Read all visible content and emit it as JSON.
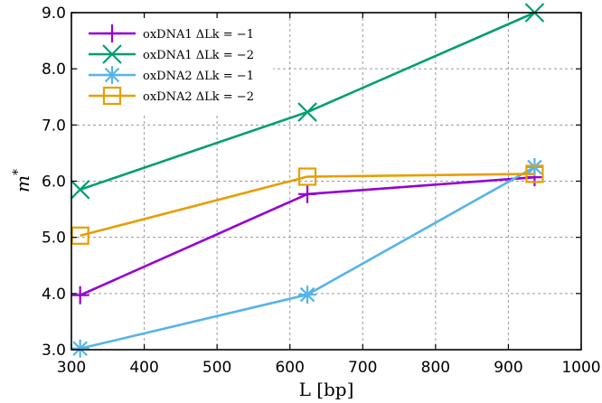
{
  "chart_data": {
    "type": "line",
    "xlabel": "L [bp]",
    "ylabel": "m*",
    "xlim": [
      300,
      1000
    ],
    "ylim": [
      3.0,
      9.0
    ],
    "x_ticks": [
      "300",
      "400",
      "500",
      "600",
      "700",
      "800",
      "900",
      "1000"
    ],
    "y_ticks": [
      "3.0",
      "4.0",
      "5.0",
      "6.0",
      "7.0",
      "8.0",
      "9.0"
    ],
    "grid": true,
    "legend_position": "top-left",
    "series": [
      {
        "name": "oxDNA1 ΔLk = −1",
        "color": "#9400d3",
        "marker": "plus",
        "x": [
          312,
          624,
          936
        ],
        "y": [
          3.97,
          5.77,
          6.07
        ]
      },
      {
        "name": "oxDNA1 ΔLk = −2",
        "color": "#009e73",
        "marker": "cross",
        "x": [
          312,
          624,
          936
        ],
        "y": [
          5.85,
          7.23,
          9.0
        ]
      },
      {
        "name": "oxDNA2 ΔLk = −1",
        "color": "#56b4e9",
        "marker": "star",
        "x": [
          312,
          624,
          936
        ],
        "y": [
          3.02,
          3.98,
          6.25
        ]
      },
      {
        "name": "oxDNA2 ΔLk = −2",
        "color": "#e69f00",
        "marker": "square",
        "x": [
          312,
          624,
          936
        ],
        "y": [
          5.03,
          6.08,
          6.13
        ]
      }
    ]
  }
}
